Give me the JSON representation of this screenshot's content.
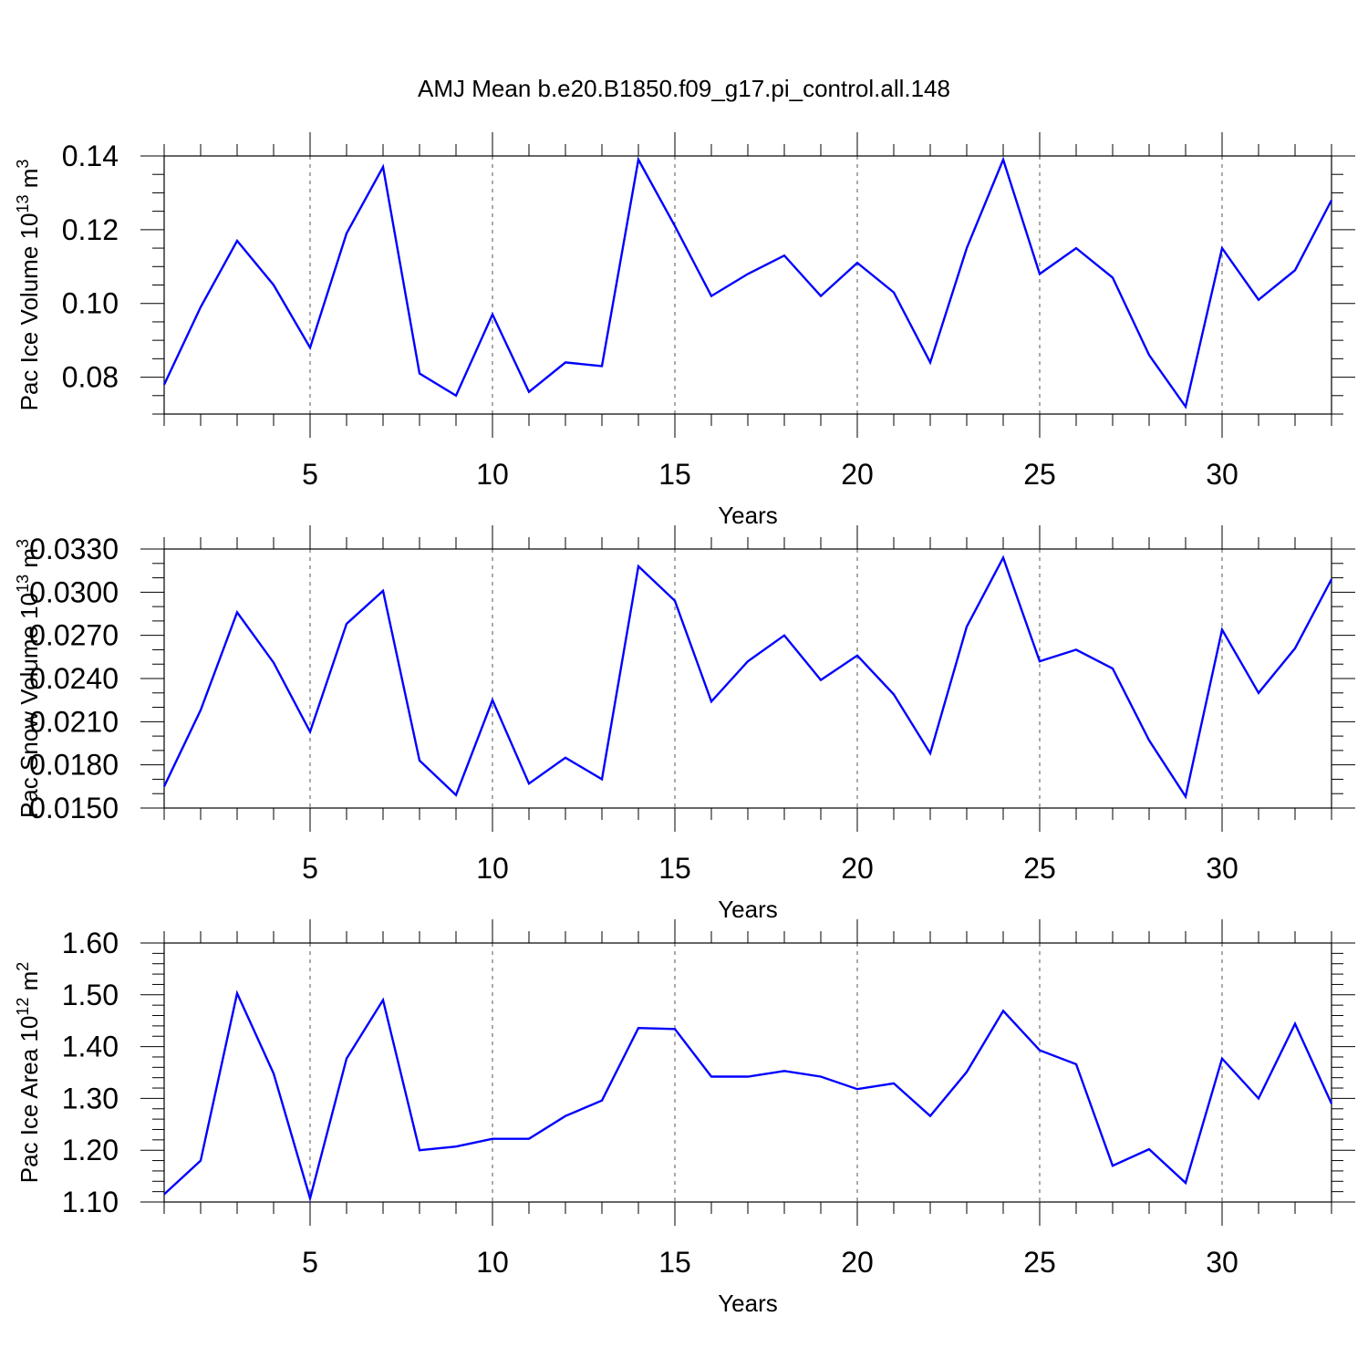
{
  "title": "AMJ Mean b.e20.B1850.f09_g17.pi_control.all.148",
  "chart_data": [
    {
      "type": "line",
      "xlabel": "Years",
      "ylabel": {
        "base": "Pac Ice Volume 10",
        "exp": "13",
        "mid": " m",
        "exp2": "3"
      },
      "xlim": [
        1,
        33
      ],
      "ylim": [
        0.07,
        0.14
      ],
      "xticks": [
        "5",
        "10",
        "15",
        "20",
        "25",
        "30"
      ],
      "xtick_values": [
        5,
        10,
        15,
        20,
        25,
        30
      ],
      "yticks": [
        "0.08",
        "0.10",
        "0.12",
        "0.14"
      ],
      "ytick_values": [
        0.08,
        0.1,
        0.12,
        0.14
      ],
      "y_minor_step": 0.005,
      "grid": "x-dashed",
      "color": "#0000ff",
      "x": [
        1,
        2,
        3,
        4,
        5,
        6,
        7,
        8,
        9,
        10,
        11,
        12,
        13,
        14,
        15,
        16,
        17,
        18,
        19,
        20,
        21,
        22,
        23,
        24,
        25,
        26,
        27,
        28,
        29,
        30,
        31,
        32,
        33
      ],
      "y": [
        0.078,
        0.099,
        0.117,
        0.105,
        0.088,
        0.119,
        0.137,
        0.081,
        0.075,
        0.097,
        0.076,
        0.084,
        0.083,
        0.139,
        0.121,
        0.102,
        0.108,
        0.113,
        0.102,
        0.111,
        0.103,
        0.084,
        0.115,
        0.139,
        0.108,
        0.115,
        0.107,
        0.086,
        0.072,
        0.115,
        0.101,
        0.109,
        0.128
      ]
    },
    {
      "type": "line",
      "xlabel": "Years",
      "ylabel": {
        "base": "Pac Snow Volume 10",
        "exp": "13",
        "mid": " m",
        "exp2": "3"
      },
      "xlim": [
        1,
        33
      ],
      "ylim": [
        0.015,
        0.033
      ],
      "xticks": [
        "5",
        "10",
        "15",
        "20",
        "25",
        "30"
      ],
      "xtick_values": [
        5,
        10,
        15,
        20,
        25,
        30
      ],
      "yticks": [
        "0.0150",
        "0.0180",
        "0.0210",
        "0.0240",
        "0.0270",
        "0.0300",
        "0.0330"
      ],
      "ytick_values": [
        0.015,
        0.018,
        0.021,
        0.024,
        0.027,
        0.03,
        0.033
      ],
      "y_minor_step": 0.001,
      "grid": "x-dashed",
      "color": "#0000ff",
      "x": [
        1,
        2,
        3,
        4,
        5,
        6,
        7,
        8,
        9,
        10,
        11,
        12,
        13,
        14,
        15,
        16,
        17,
        18,
        19,
        20,
        21,
        22,
        23,
        24,
        25,
        26,
        27,
        28,
        29,
        30,
        31,
        32,
        33
      ],
      "y": [
        0.0165,
        0.0218,
        0.0286,
        0.0251,
        0.0203,
        0.0278,
        0.0301,
        0.0183,
        0.0159,
        0.0225,
        0.0167,
        0.0185,
        0.017,
        0.0318,
        0.0294,
        0.0224,
        0.0252,
        0.027,
        0.0239,
        0.0256,
        0.0229,
        0.0188,
        0.0276,
        0.0324,
        0.0252,
        0.026,
        0.0247,
        0.0197,
        0.0158,
        0.0274,
        0.023,
        0.0261,
        0.0309
      ]
    },
    {
      "type": "line",
      "xlabel": "Years",
      "ylabel": {
        "base": "Pac Ice Area 10",
        "exp": "12",
        "mid": " m",
        "exp2": "2"
      },
      "xlim": [
        1,
        33
      ],
      "ylim": [
        1.1,
        1.6
      ],
      "xticks": [
        "5",
        "10",
        "15",
        "20",
        "25",
        "30"
      ],
      "xtick_values": [
        5,
        10,
        15,
        20,
        25,
        30
      ],
      "yticks": [
        "1.10",
        "1.20",
        "1.30",
        "1.40",
        "1.50",
        "1.60"
      ],
      "ytick_values": [
        1.1,
        1.2,
        1.3,
        1.4,
        1.5,
        1.6
      ],
      "y_minor_step": 0.02,
      "grid": "x-dashed",
      "color": "#0000ff",
      "x": [
        1,
        2,
        3,
        4,
        5,
        6,
        7,
        8,
        9,
        10,
        11,
        12,
        13,
        14,
        15,
        16,
        17,
        18,
        19,
        20,
        21,
        22,
        23,
        24,
        25,
        26,
        27,
        28,
        29,
        30,
        31,
        32,
        33
      ],
      "y": [
        1.115,
        1.18,
        1.503,
        1.348,
        1.107,
        1.377,
        1.49,
        1.2,
        1.207,
        1.222,
        1.222,
        1.266,
        1.296,
        1.436,
        1.434,
        1.342,
        1.342,
        1.353,
        1.342,
        1.318,
        1.329,
        1.266,
        1.351,
        1.469,
        1.393,
        1.366,
        1.17,
        1.202,
        1.137,
        1.377,
        1.3,
        1.444,
        1.29
      ]
    }
  ]
}
